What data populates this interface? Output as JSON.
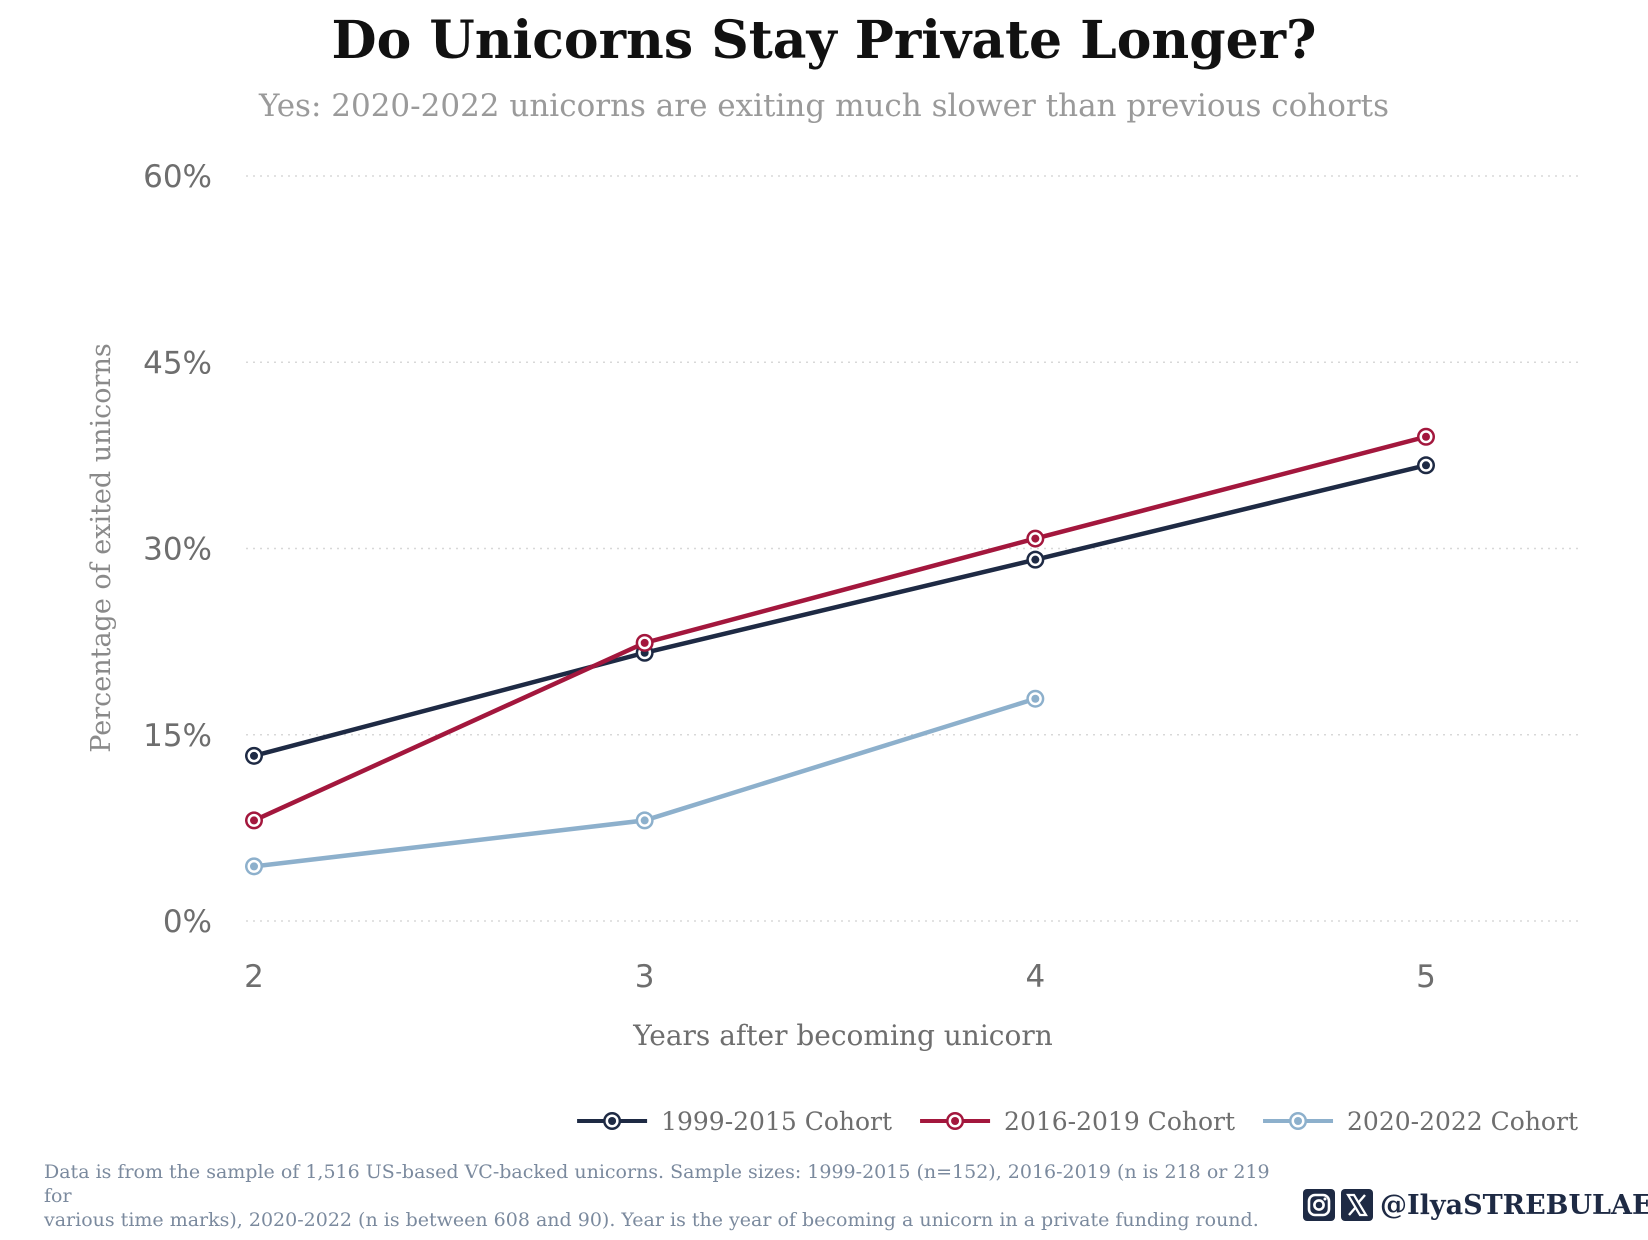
{
  "title": "Do Unicorns Stay Private Longer?",
  "subtitle": "Yes: 2020-2022 unicorns are exiting much slower than previous cohorts",
  "chart_data": {
    "type": "line",
    "title": "Do Unicorns Stay Private Longer?",
    "subtitle": "Yes: 2020-2022 unicorns are exiting much slower than previous cohorts",
    "xlabel": "Years after becoming unicorn",
    "ylabel": "Percentage of exited unicorns",
    "x": [
      2,
      3,
      4,
      5
    ],
    "x_tick_labels": [
      "2",
      "3",
      "4",
      "5"
    ],
    "ylim": [
      0,
      60
    ],
    "y_ticks": [
      0,
      15,
      30,
      45,
      60
    ],
    "y_tick_labels": [
      "0%",
      "15%",
      "30%",
      "45%",
      "60%"
    ],
    "grid": "horizontal dotted",
    "legend_position": "bottom-right",
    "series": [
      {
        "name": "1999-2015 Cohort",
        "color": "#1e2a44",
        "values": [
          13.3,
          21.6,
          29.1,
          36.7
        ]
      },
      {
        "name": "2016-2019 Cohort",
        "color": "#a3173d",
        "values": [
          8.1,
          22.4,
          30.8,
          39.0
        ]
      },
      {
        "name": "2020-2022 Cohort",
        "color": "#8db0cc",
        "values": [
          4.4,
          8.1,
          17.9,
          null
        ]
      }
    ]
  },
  "footnote": {
    "line1": "Data is from the sample of 1,516 US-based VC-backed unicorns. Sample sizes: 1999-2015 (n=152), 2016-2019 (n is 218 or 219 for",
    "line2": "various time marks), 2020-2022 (n is between 608 and 90). Year is the year of becoming a unicorn in a private funding round."
  },
  "branding": {
    "handle": "@IlyaSTREBULAEV",
    "icons": [
      "instagram-icon",
      "x-icon"
    ],
    "color": "#1e2a44"
  }
}
